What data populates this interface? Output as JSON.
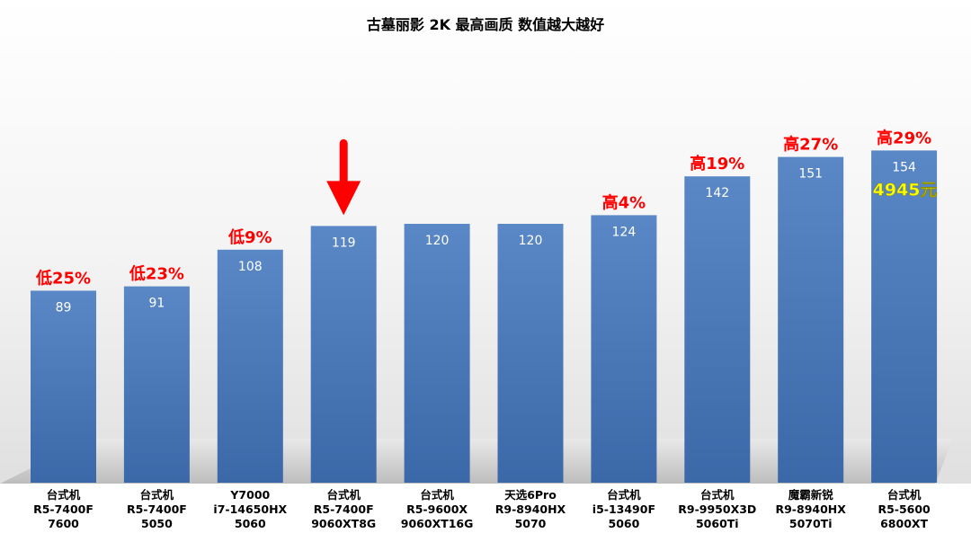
{
  "chart_data": {
    "type": "bar",
    "title": "古墓丽影 2K 最高画质 数值越大越好",
    "categories": [
      [
        "台式机",
        "R5-7400F",
        "7600"
      ],
      [
        "台式机",
        "R5-7400F",
        "5050"
      ],
      [
        "Y7000",
        "i7-14650HX",
        "5060"
      ],
      [
        "台式机",
        "R5-7400F",
        "9060XT8G"
      ],
      [
        "台式机",
        "R5-9600X",
        "9060XT16G"
      ],
      [
        "天选6Pro",
        "R9-8940HX",
        "5070"
      ],
      [
        "台式机",
        "i5-13490F",
        "5060"
      ],
      [
        "台式机",
        "R9-9950X3D",
        "5060Ti"
      ],
      [
        "魔霸新锐",
        "R9-8940HX",
        "5070Ti"
      ],
      [
        "台式机",
        "R5-5600",
        "6800XT"
      ]
    ],
    "values": [
      89,
      91,
      108,
      119,
      120,
      120,
      124,
      142,
      151,
      154
    ],
    "annotations": [
      "低25%",
      "低23%",
      "低9%",
      "",
      "",
      "",
      "高4%",
      "高19%",
      "高27%",
      "高29%"
    ],
    "price_note": {
      "bar_index": 9,
      "text": "4945元"
    },
    "highlight_arrow_index": 3,
    "ylim": [
      0,
      260
    ],
    "grid": false,
    "colors": {
      "bar_top": "#5a88c6",
      "bar_bottom": "#3b68a8",
      "annotation": "#ff0000",
      "price_note": "#ffff00",
      "arrow": "#ff0000",
      "value_label": "#ffffff"
    }
  }
}
